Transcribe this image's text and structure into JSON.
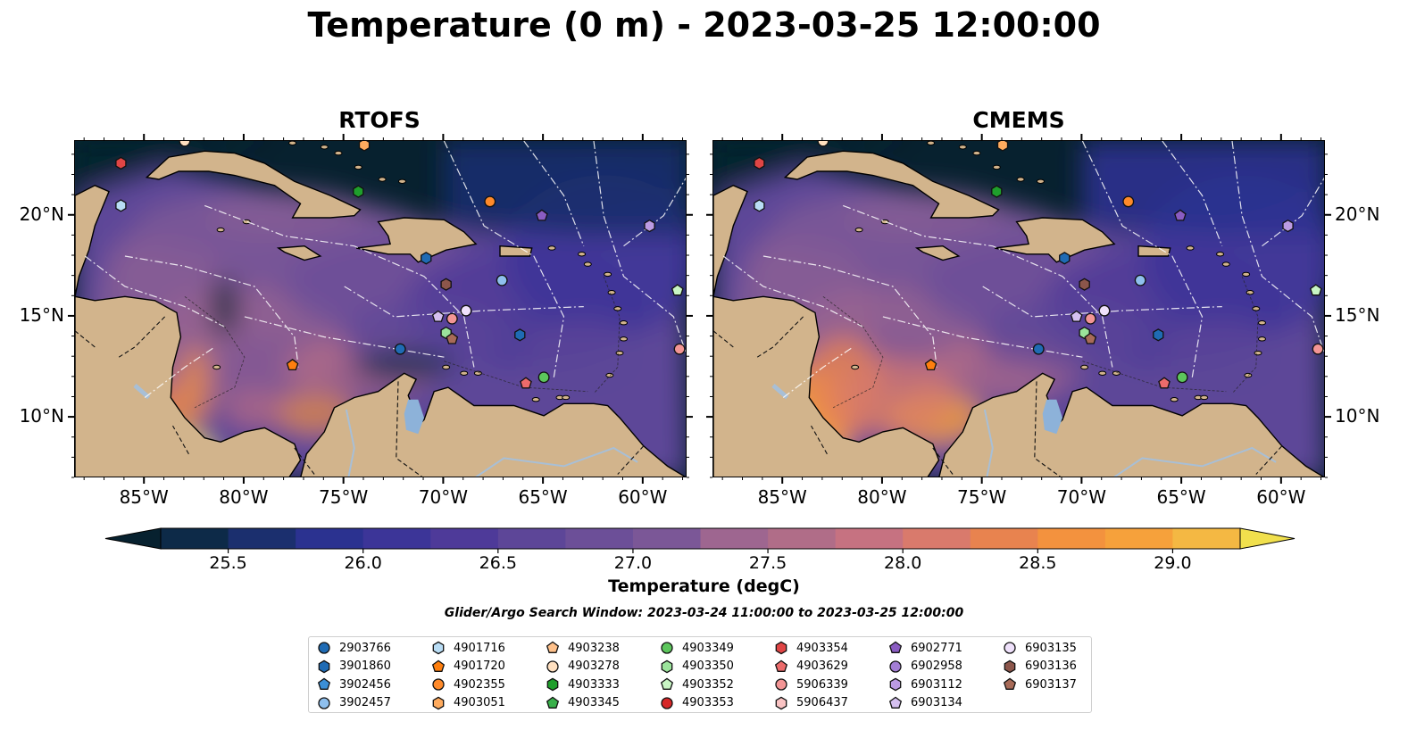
{
  "title": "Temperature (0 m) - 2023-03-25 12:00:00",
  "panels": [
    {
      "title": "RTOFS"
    },
    {
      "title": "CMEMS"
    }
  ],
  "axes": {
    "lon_ticks": [
      "85°W",
      "80°W",
      "75°W",
      "70°W",
      "65°W",
      "60°W"
    ],
    "lat_ticks": [
      "20°N",
      "15°N",
      "10°N"
    ],
    "lon_range": [
      -88.5,
      -57.8
    ],
    "lat_range": [
      7.0,
      23.7
    ]
  },
  "colorbar": {
    "label": "Temperature (degC)",
    "ticks": [
      "25.5",
      "26.0",
      "26.5",
      "27.0",
      "27.5",
      "28.0",
      "28.5",
      "29.0"
    ],
    "range": [
      25.25,
      29.25
    ],
    "colors": [
      "#07212f",
      "#0d2a48",
      "#1b2f6e",
      "#2b3290",
      "#3c3598",
      "#4e3a99",
      "#5d4698",
      "#6c4f98",
      "#7b5797",
      "#8c5f94",
      "#9e6690",
      "#b06d88",
      "#c67281",
      "#d97a6c",
      "#e8834f",
      "#f3923e",
      "#f6a13b",
      "#f4b843",
      "#f2cc46",
      "#f1e04d"
    ]
  },
  "search_window": "Glider/Argo Search Window: 2023-03-24 11:00:00 to 2023-03-25 12:00:00",
  "colors": {
    "land": "#d2b48c",
    "lakes": "#8db2d9",
    "rivers": "#a8bfd6",
    "background": "#07212f"
  },
  "legend": [
    {
      "id": "2903766",
      "shape": "circle",
      "color": "#1f6bb4"
    },
    {
      "id": "3901860",
      "shape": "hexagon",
      "color": "#1f6bb4"
    },
    {
      "id": "3902456",
      "shape": "pentagon",
      "color": "#3b8fd6"
    },
    {
      "id": "3902457",
      "shape": "circle",
      "color": "#8fc0ee"
    },
    {
      "id": "4901716",
      "shape": "hexagon",
      "color": "#b9ddf5"
    },
    {
      "id": "4901720",
      "shape": "pentagon",
      "color": "#ff7f0e"
    },
    {
      "id": "4902355",
      "shape": "circle",
      "color": "#ff8a2a"
    },
    {
      "id": "4903051",
      "shape": "hexagon",
      "color": "#ffab5e"
    },
    {
      "id": "4903238",
      "shape": "pentagon",
      "color": "#ffc18b"
    },
    {
      "id": "4903278",
      "shape": "circle",
      "color": "#ffe0c0"
    },
    {
      "id": "4903333",
      "shape": "hexagon",
      "color": "#1f9e2c"
    },
    {
      "id": "4903345",
      "shape": "pentagon",
      "color": "#39b04a"
    },
    {
      "id": "4903349",
      "shape": "circle",
      "color": "#5cc65c"
    },
    {
      "id": "4903350",
      "shape": "hexagon",
      "color": "#9be39b"
    },
    {
      "id": "4903352",
      "shape": "pentagon",
      "color": "#c8f5c4"
    },
    {
      "id": "4903353",
      "shape": "circle",
      "color": "#d62728"
    },
    {
      "id": "4903354",
      "shape": "hexagon",
      "color": "#e04545"
    },
    {
      "id": "4903629",
      "shape": "pentagon",
      "color": "#ec6b6b"
    },
    {
      "id": "5906339",
      "shape": "circle",
      "color": "#f39595"
    },
    {
      "id": "5906437",
      "shape": "hexagon",
      "color": "#f9c3c3"
    },
    {
      "id": "6902771",
      "shape": "pentagon",
      "color": "#8a5cc2"
    },
    {
      "id": "6902958",
      "shape": "circle",
      "color": "#a37ed4"
    },
    {
      "id": "6903112",
      "shape": "hexagon",
      "color": "#bc9be3"
    },
    {
      "id": "6903134",
      "shape": "pentagon",
      "color": "#d5c0f0"
    },
    {
      "id": "6903135",
      "shape": "circle",
      "color": "#efe1fb"
    },
    {
      "id": "6903136",
      "shape": "hexagon",
      "color": "#8c564b"
    },
    {
      "id": "6903137",
      "shape": "pentagon",
      "color": "#a86b58"
    }
  ],
  "floats": [
    {
      "id": "4903354",
      "lon": -86.2,
      "lat": 22.6
    },
    {
      "id": "4901716",
      "lon": -86.2,
      "lat": 20.5
    },
    {
      "id": "4903333",
      "lon": -74.3,
      "lat": 21.2
    },
    {
      "id": "4902355",
      "lon": -67.7,
      "lat": 20.7
    },
    {
      "id": "6902771",
      "lon": -65.1,
      "lat": 20.0
    },
    {
      "id": "6903112",
      "lon": -59.7,
      "lat": 19.5
    },
    {
      "id": "3901860",
      "lon": -70.9,
      "lat": 17.9
    },
    {
      "id": "3902457",
      "lon": -67.1,
      "lat": 16.8
    },
    {
      "id": "6903136",
      "lon": -69.9,
      "lat": 16.6
    },
    {
      "id": "4903352",
      "lon": -58.3,
      "lat": 16.3
    },
    {
      "id": "6903135",
      "lon": -68.9,
      "lat": 15.3
    },
    {
      "id": "6903134",
      "lon": -70.3,
      "lat": 15.0
    },
    {
      "id": "5906339",
      "lon": -69.6,
      "lat": 14.9
    },
    {
      "id": "4903350",
      "lon": -69.9,
      "lat": 14.2
    },
    {
      "id": "6903137",
      "lon": -69.6,
      "lat": 13.9
    },
    {
      "id": "3901860",
      "lon": -66.2,
      "lat": 14.1
    },
    {
      "id": "2903766",
      "lon": -72.2,
      "lat": 13.4
    },
    {
      "id": "5906339",
      "lon": -58.2,
      "lat": 13.4
    },
    {
      "id": "4901720",
      "lon": -77.6,
      "lat": 12.6
    },
    {
      "id": "4903629",
      "lon": -65.9,
      "lat": 11.7
    },
    {
      "id": "4903349",
      "lon": -65.0,
      "lat": 12.0
    },
    {
      "id": "4903278",
      "lon": -83.0,
      "lat": 23.7
    },
    {
      "id": "4903051",
      "lon": -74.0,
      "lat": 23.5
    }
  ]
}
